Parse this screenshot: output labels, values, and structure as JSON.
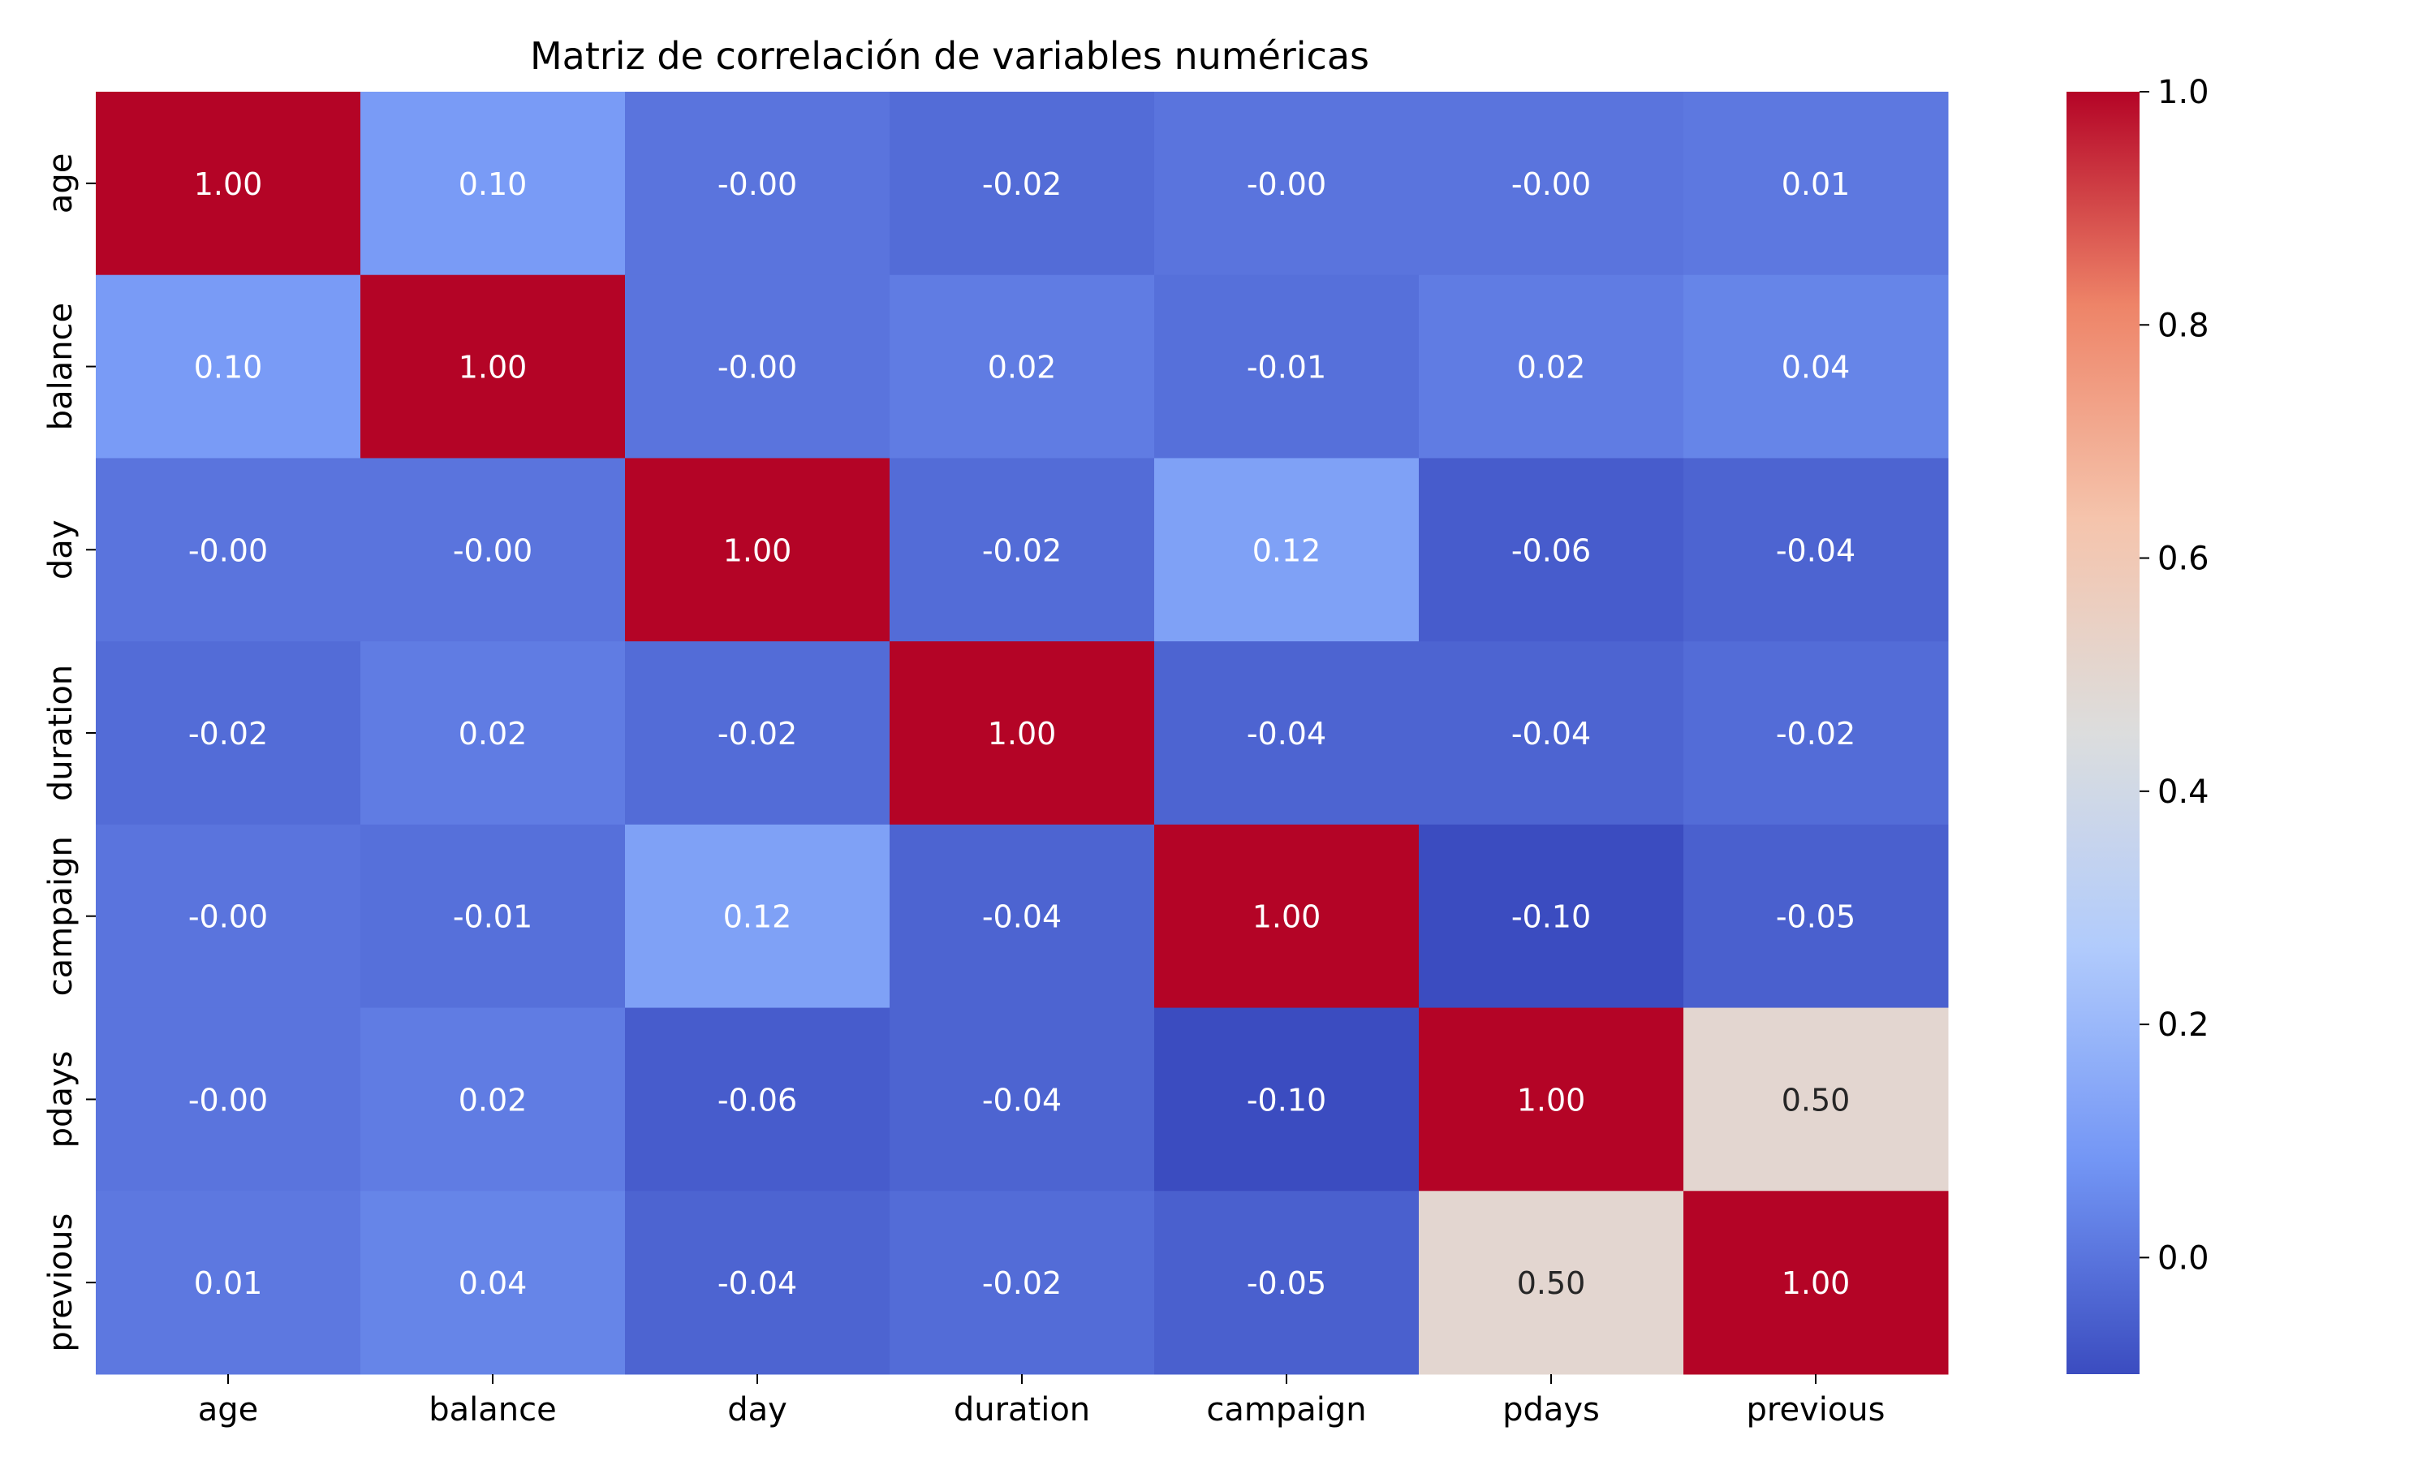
{
  "chart_data": {
    "type": "heatmap",
    "title": "Matriz de correlación de variables numéricas",
    "xlabel": "",
    "ylabel": "",
    "x_categories": [
      "age",
      "balance",
      "day",
      "duration",
      "campaign",
      "pdays",
      "previous"
    ],
    "y_categories": [
      "age",
      "balance",
      "day",
      "duration",
      "campaign",
      "pdays",
      "previous"
    ],
    "values": [
      [
        1.0,
        0.1,
        -0.0,
        -0.02,
        -0.0,
        -0.0,
        0.01
      ],
      [
        0.1,
        1.0,
        -0.0,
        0.02,
        -0.01,
        0.02,
        0.04
      ],
      [
        -0.0,
        -0.0,
        1.0,
        -0.02,
        0.12,
        -0.06,
        -0.04
      ],
      [
        -0.02,
        0.02,
        -0.02,
        1.0,
        -0.04,
        -0.04,
        -0.02
      ],
      [
        -0.0,
        -0.01,
        0.12,
        -0.04,
        1.0,
        -0.1,
        -0.05
      ],
      [
        -0.0,
        0.02,
        -0.06,
        -0.04,
        -0.1,
        1.0,
        0.5
      ],
      [
        0.01,
        0.04,
        -0.04,
        -0.02,
        -0.05,
        0.5,
        1.0
      ]
    ],
    "value_labels": [
      [
        "1.00",
        "0.10",
        "-0.00",
        "-0.02",
        "-0.00",
        "-0.00",
        "0.01"
      ],
      [
        "0.10",
        "1.00",
        "-0.00",
        "0.02",
        "-0.01",
        "0.02",
        "0.04"
      ],
      [
        "-0.00",
        "-0.00",
        "1.00",
        "-0.02",
        "0.12",
        "-0.06",
        "-0.04"
      ],
      [
        "-0.02",
        "0.02",
        "-0.02",
        "1.00",
        "-0.04",
        "-0.04",
        "-0.02"
      ],
      [
        "-0.00",
        "-0.01",
        "0.12",
        "-0.04",
        "1.00",
        "-0.10",
        "-0.05"
      ],
      [
        "-0.00",
        "0.02",
        "-0.06",
        "-0.04",
        "-0.10",
        "1.00",
        "0.50"
      ],
      [
        "0.01",
        "0.04",
        "-0.04",
        "-0.02",
        "-0.05",
        "0.50",
        "1.00"
      ]
    ],
    "colormap": "coolwarm",
    "color_stops": [
      "#3b4cc0",
      "#7396f5",
      "#b1cbfc",
      "#dcdddd",
      "#f5c4ac",
      "#ee8468",
      "#b40426"
    ],
    "vmin": -0.1,
    "vmax": 1.0,
    "colorbar_ticks": [
      0.0,
      0.2,
      0.4,
      0.6,
      0.8,
      1.0
    ],
    "colorbar_tick_labels": [
      "0.0",
      "0.2",
      "0.4",
      "0.6",
      "0.8",
      "1.0"
    ],
    "grid": false,
    "legend": "colorbar-right"
  }
}
